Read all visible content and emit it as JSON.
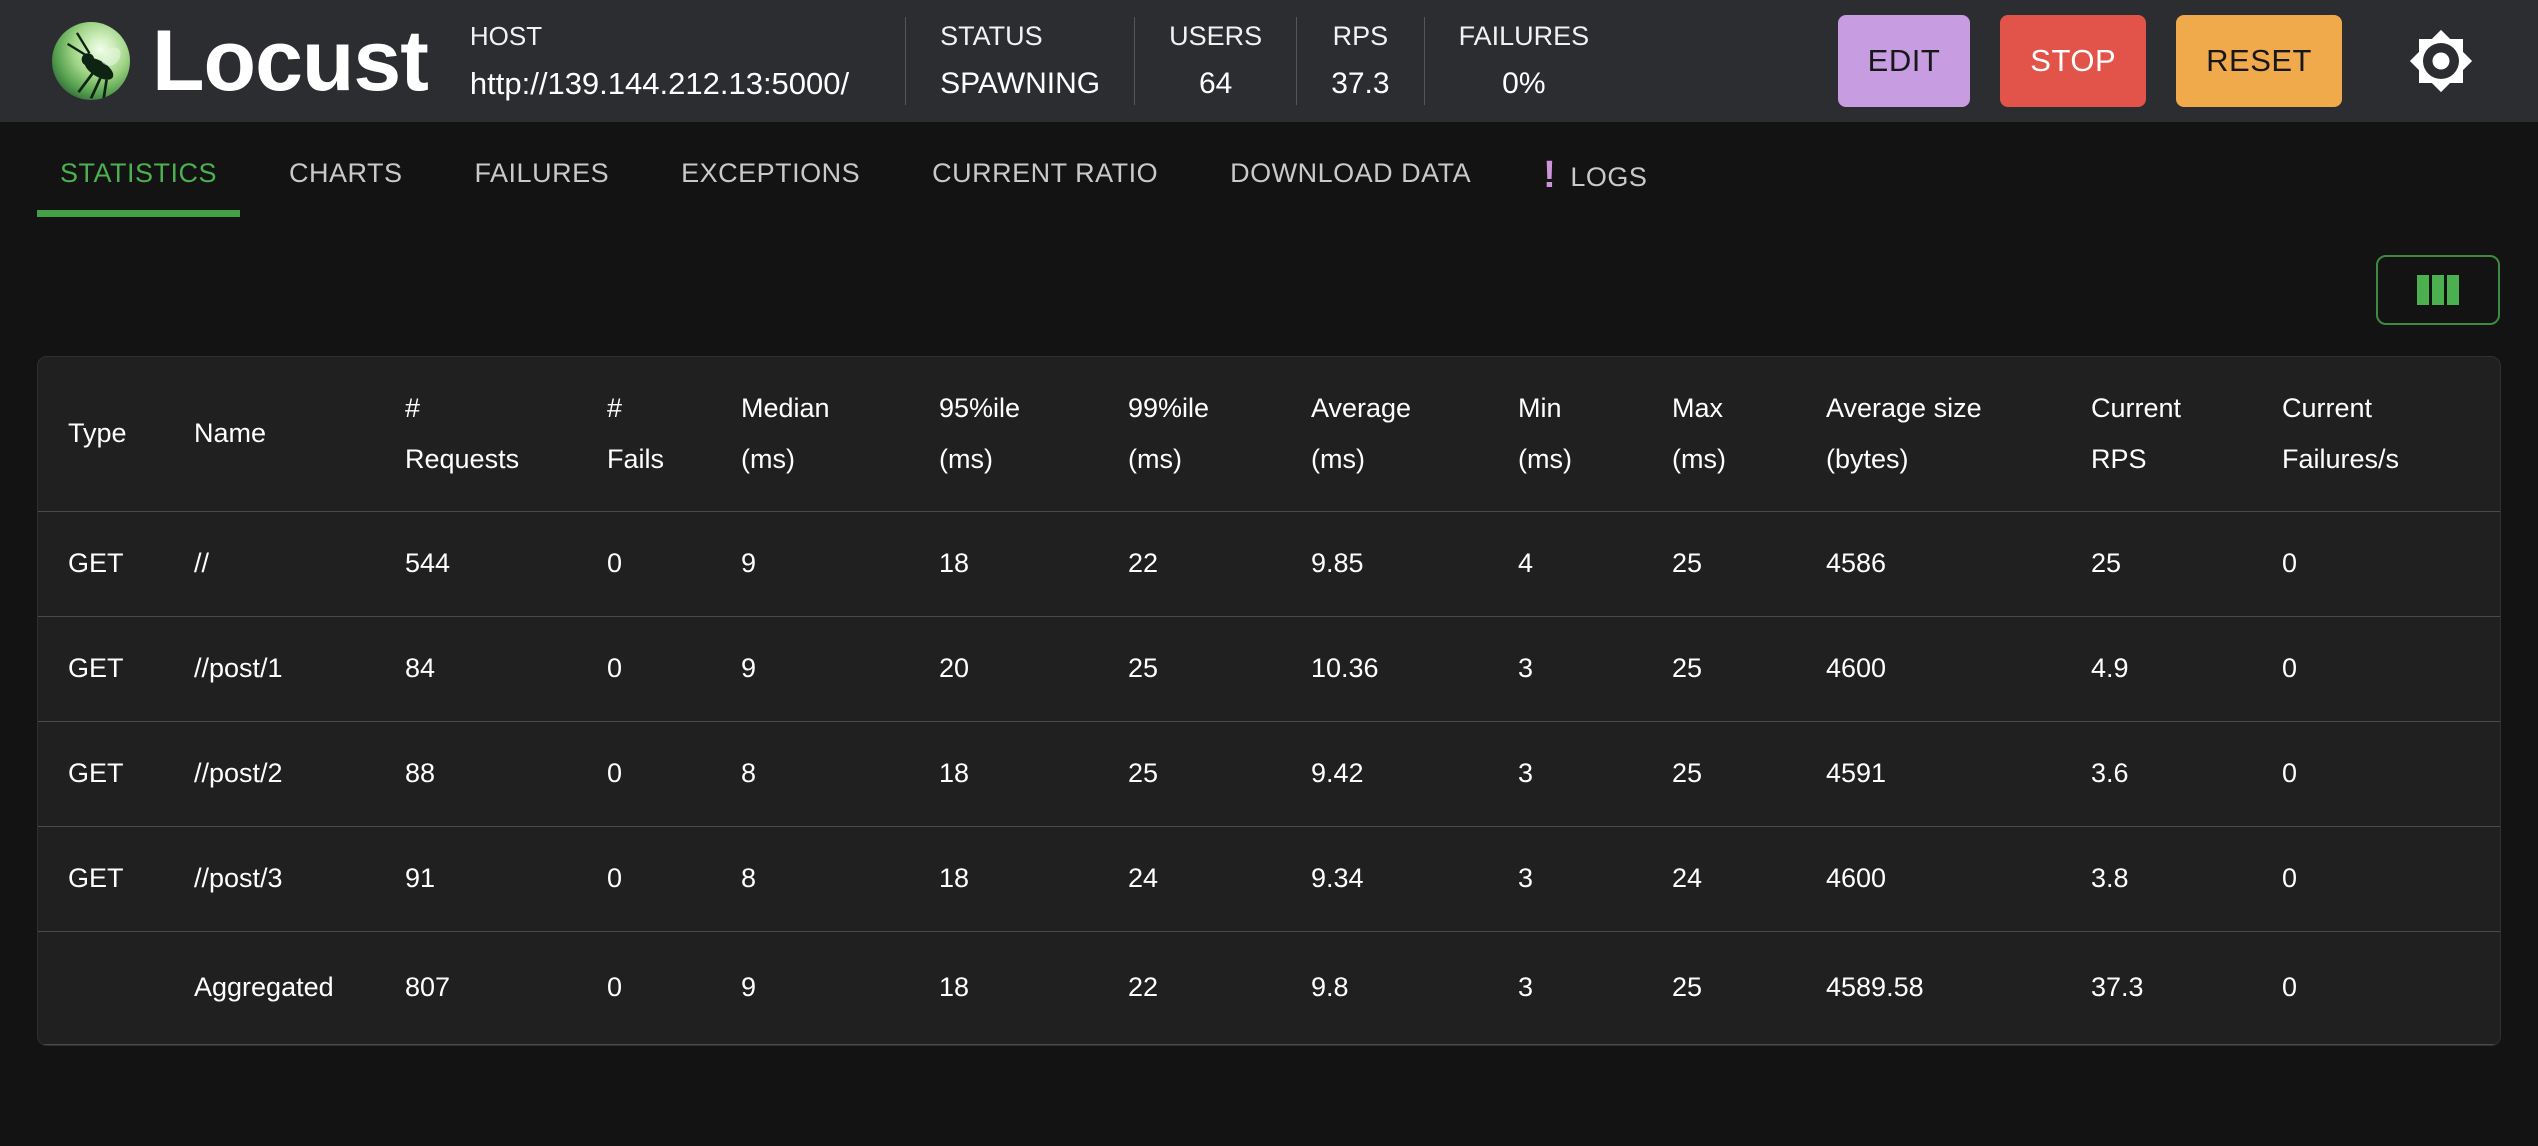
{
  "header": {
    "logo_text": "Locust",
    "host_label": "HOST",
    "host_url": "http://139.144.212.13:5000/",
    "stats": [
      {
        "id": "status",
        "label": "STATUS",
        "value": "SPAWNING"
      },
      {
        "id": "users",
        "label": "USERS",
        "value": "64"
      },
      {
        "id": "rps",
        "label": "RPS",
        "value": "37.3"
      },
      {
        "id": "failures",
        "label": "FAILURES",
        "value": "0%"
      }
    ],
    "buttons": [
      {
        "id": "edit",
        "label": "EDIT",
        "bg": "#c79ce1",
        "fg": "#17181c"
      },
      {
        "id": "stop",
        "label": "STOP",
        "bg": "#e2544a",
        "fg": "#ffffff"
      },
      {
        "id": "reset",
        "label": "RESET",
        "bg": "#f0a94b",
        "fg": "#17181c"
      }
    ]
  },
  "tabs": [
    {
      "id": "statistics",
      "label": "STATISTICS",
      "active": true
    },
    {
      "id": "charts",
      "label": "CHARTS"
    },
    {
      "id": "failures",
      "label": "FAILURES"
    },
    {
      "id": "exceptions",
      "label": "EXCEPTIONS"
    },
    {
      "id": "current-ratio",
      "label": "CURRENT RATIO"
    },
    {
      "id": "download-data",
      "label": "DOWNLOAD DATA"
    },
    {
      "id": "logs",
      "label": "LOGS",
      "badge": "!"
    }
  ],
  "colors": {
    "accent_green": "#4caf50",
    "active_tab_green": "#57a55a",
    "underline_green": "#43a047",
    "badge_purple": "#ce93d8",
    "edit_purple": "#c79ce1",
    "stop_red": "#e2544a",
    "reset_orange": "#f0a94b"
  },
  "table": {
    "columns": [
      [
        "Type"
      ],
      [
        "Name"
      ],
      [
        "#",
        "Requests"
      ],
      [
        "#",
        "Fails"
      ],
      [
        "Median",
        "(ms)"
      ],
      [
        "95%ile",
        "(ms)"
      ],
      [
        "99%ile",
        "(ms)"
      ],
      [
        "Average",
        "(ms)"
      ],
      [
        "Min",
        "(ms)"
      ],
      [
        "Max",
        "(ms)"
      ],
      [
        "Average size",
        "(bytes)"
      ],
      [
        "Current",
        "RPS"
      ],
      [
        "Current",
        "Failures/s"
      ]
    ],
    "rows": [
      [
        "GET",
        "//",
        "544",
        "0",
        "9",
        "18",
        "22",
        "9.85",
        "4",
        "25",
        "4586",
        "25",
        "0"
      ],
      [
        "GET",
        "//post/1",
        "84",
        "0",
        "9",
        "20",
        "25",
        "10.36",
        "3",
        "25",
        "4600",
        "4.9",
        "0"
      ],
      [
        "GET",
        "//post/2",
        "88",
        "0",
        "8",
        "18",
        "25",
        "9.42",
        "3",
        "25",
        "4591",
        "3.6",
        "0"
      ],
      [
        "GET",
        "//post/3",
        "91",
        "0",
        "8",
        "18",
        "24",
        "9.34",
        "3",
        "24",
        "4600",
        "3.8",
        "0"
      ]
    ],
    "aggregated": [
      "",
      "Aggregated",
      "807",
      "0",
      "9",
      "18",
      "22",
      "9.8",
      "3",
      "25",
      "4589.58",
      "37.3",
      "0"
    ]
  }
}
